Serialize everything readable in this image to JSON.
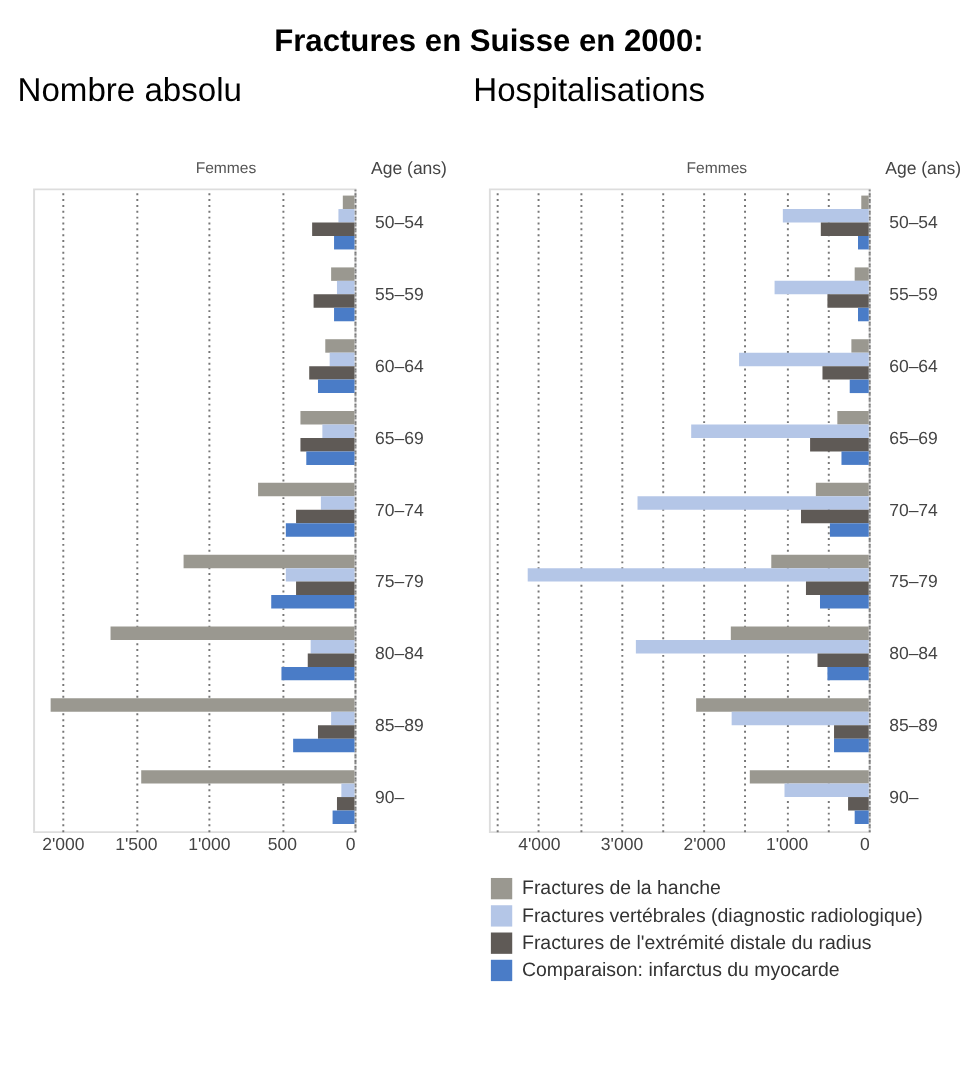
{
  "chart_data": [
    {
      "type": "bar",
      "orientation": "horizontal",
      "title": "Nombre absolu",
      "xlabel": "Femmes",
      "ylabel": "Age (ans)",
      "annotations": [
        "Fractures en Suisse en 2000:"
      ],
      "categories": [
        "50–54",
        "55–59",
        "60–64",
        "65–69",
        "70–74",
        "75–79",
        "80–84",
        "85–89",
        "90–"
      ],
      "series": [
        {
          "color": "#9a9890",
          "values": [
            80,
            160,
            200,
            370,
            660,
            1170,
            1670,
            2080,
            1460
          ]
        },
        {
          "color": "#b4c6e7",
          "values": [
            110,
            120,
            170,
            220,
            230,
            470,
            300,
            160,
            90
          ]
        },
        {
          "color": "#5f5a56",
          "values": [
            290,
            280,
            310,
            370,
            400,
            400,
            320,
            250,
            120
          ]
        },
        {
          "color": "#4a7cc7",
          "values": [
            140,
            140,
            250,
            330,
            470,
            570,
            500,
            420,
            150
          ]
        }
      ],
      "xlim": [
        2200,
        0
      ],
      "xticks": [
        {
          "value": 2000,
          "label": "2'000"
        },
        {
          "value": 1500,
          "label": "1'500"
        },
        {
          "value": 1000,
          "label": "1'000"
        },
        500,
        0
      ],
      "grid": "x"
    },
    {
      "type": "bar",
      "orientation": "horizontal",
      "title": "Hospitalisations",
      "xlabel": "Femmes",
      "ylabel": "Age (ans)",
      "categories": [
        "50–54",
        "55–59",
        "60–64",
        "65–69",
        "70–74",
        "75–79",
        "80–84",
        "85–89",
        "90–"
      ],
      "series": [
        {
          "name": "Fractures de la hanche",
          "color": "#9a9890",
          "values": [
            90,
            170,
            210,
            380,
            640,
            1180,
            1670,
            2090,
            1440
          ]
        },
        {
          "name": "Fractures vertébrales (diagnostic radiologique)",
          "color": "#b4c6e7",
          "values": [
            1040,
            1140,
            1570,
            2150,
            2800,
            4130,
            2820,
            1660,
            1020
          ]
        },
        {
          "name": "Fractures de l'extrémité distale du radius",
          "color": "#5f5a56",
          "values": [
            580,
            500,
            560,
            710,
            820,
            760,
            620,
            420,
            250
          ]
        },
        {
          "name": "Comparaison: infarctus du myocarde",
          "color": "#4a7cc7",
          "values": [
            130,
            130,
            230,
            330,
            470,
            590,
            500,
            420,
            170
          ]
        }
      ],
      "xlim": [
        4600,
        0
      ],
      "xticks": [
        {
          "value": 4500,
          "label": null
        },
        {
          "value": 4000,
          "label": "4'000"
        },
        {
          "value": 3500,
          "label": null
        },
        {
          "value": 3000,
          "label": "3'000"
        },
        {
          "value": 2500,
          "label": null
        },
        {
          "value": 2000,
          "label": "2'000"
        },
        {
          "value": 1500,
          "label": null
        },
        {
          "value": 1000,
          "label": "1'000"
        },
        {
          "value": 500,
          "label": null
        },
        0
      ],
      "grid": "x",
      "legend": "bottom"
    }
  ]
}
